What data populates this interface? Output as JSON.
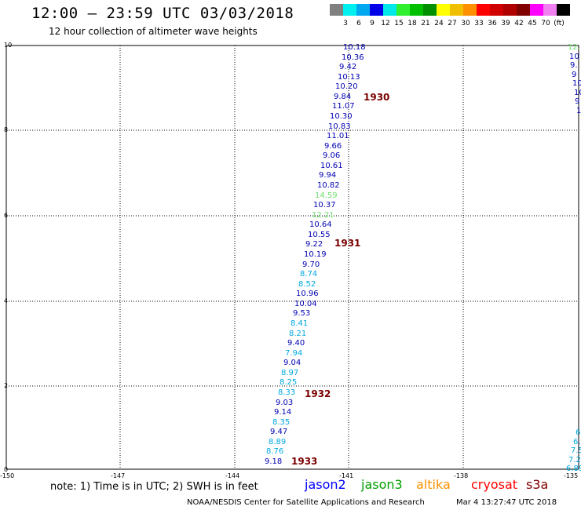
{
  "header": {
    "title": "12:00 — 23:59 UTC 03/03/2018",
    "subtitle": "12 hour collection of altimeter wave heights"
  },
  "legend": {
    "colors": [
      "#808080",
      "#00f0f0",
      "#00a8f0",
      "#0000e8",
      "#00e8e8",
      "#30f030",
      "#00c000",
      "#009000",
      "#ffff00",
      "#f0c000",
      "#ff9000",
      "#ff0000",
      "#d00000",
      "#b00000",
      "#800000",
      "#ff00ff",
      "#f080f0",
      "#000000"
    ],
    "labels": [
      "3",
      "6",
      "9",
      "12",
      "15",
      "18",
      "21",
      "24",
      "27",
      "30",
      "33",
      "36",
      "39",
      "42",
      "45",
      "70",
      "(ft)"
    ]
  },
  "axes": {
    "y_ticks": [
      "10",
      "8",
      "6",
      "4",
      "2",
      "0"
    ],
    "x_ticks": [
      "-150",
      "-147",
      "-144",
      "-141",
      "-138",
      "-135"
    ]
  },
  "palette": {
    "navy": "#0000b4",
    "cyan": "#00a8e0",
    "green": "#70e070",
    "pass": "#7b0000"
  },
  "track_main": [
    {
      "v": "10.18",
      "c": "navy"
    },
    {
      "v": "10.36",
      "c": "navy"
    },
    {
      "v": "9.42",
      "c": "navy"
    },
    {
      "v": "10.13",
      "c": "navy"
    },
    {
      "v": "10.20",
      "c": "navy"
    },
    {
      "v": "9.84",
      "c": "navy"
    },
    {
      "v": "11.07",
      "c": "navy"
    },
    {
      "v": "10.30",
      "c": "navy"
    },
    {
      "v": "10.83",
      "c": "navy"
    },
    {
      "v": "11.01",
      "c": "navy"
    },
    {
      "v": "9.66",
      "c": "navy"
    },
    {
      "v": "9.06",
      "c": "navy"
    },
    {
      "v": "10.61",
      "c": "navy"
    },
    {
      "v": "9.94",
      "c": "navy"
    },
    {
      "v": "10.82",
      "c": "navy"
    },
    {
      "v": "14.59",
      "c": "green"
    },
    {
      "v": "10.37",
      "c": "navy"
    },
    {
      "v": "12.21",
      "c": "green"
    },
    {
      "v": "10.64",
      "c": "navy"
    },
    {
      "v": "10.55",
      "c": "navy"
    },
    {
      "v": "9.22",
      "c": "navy"
    },
    {
      "v": "10.19",
      "c": "navy"
    },
    {
      "v": "9.70",
      "c": "navy"
    },
    {
      "v": "8.74",
      "c": "cyan"
    },
    {
      "v": "8.52",
      "c": "cyan"
    },
    {
      "v": "10.96",
      "c": "navy"
    },
    {
      "v": "10.04",
      "c": "navy"
    },
    {
      "v": "9.53",
      "c": "navy"
    },
    {
      "v": "8.41",
      "c": "cyan"
    },
    {
      "v": "8.21",
      "c": "cyan"
    },
    {
      "v": "9.40",
      "c": "navy"
    },
    {
      "v": "7.94",
      "c": "cyan"
    },
    {
      "v": "9.04",
      "c": "navy"
    },
    {
      "v": "8.97",
      "c": "cyan"
    },
    {
      "v": "8.25",
      "c": "cyan"
    },
    {
      "v": "8.33",
      "c": "cyan"
    },
    {
      "v": "9.03",
      "c": "navy"
    },
    {
      "v": "9.14",
      "c": "navy"
    },
    {
      "v": "8.35",
      "c": "cyan"
    },
    {
      "v": "9.47",
      "c": "navy"
    },
    {
      "v": "8.89",
      "c": "cyan"
    },
    {
      "v": "8.76",
      "c": "cyan"
    },
    {
      "v": "9.18",
      "c": "navy"
    }
  ],
  "edge_top": [
    {
      "v": "12.",
      "c": "green"
    },
    {
      "v": "10",
      "c": "navy"
    },
    {
      "v": "9.",
      "c": "navy"
    },
    {
      "v": "9",
      "c": "navy"
    },
    {
      "v": "10",
      "c": "navy"
    },
    {
      "v": "10",
      "c": "navy"
    },
    {
      "v": "9",
      "c": "navy"
    },
    {
      "v": "10",
      "c": "navy"
    }
  ],
  "edge_bottom": [
    {
      "v": "6",
      "c": "cyan"
    },
    {
      "v": "6.",
      "c": "cyan"
    },
    {
      "v": "7.5",
      "c": "cyan"
    },
    {
      "v": "7.2",
      "c": "cyan"
    },
    {
      "v": "6.89",
      "c": "cyan"
    }
  ],
  "pass_labels": [
    "1930",
    "1931",
    "1932",
    "1933"
  ],
  "note": "note:  1) Time is in UTC;  2) SWH is in feet",
  "satellites": [
    {
      "name": "jason2",
      "color": "#0000ff"
    },
    {
      "name": "jason3",
      "color": "#00a000"
    },
    {
      "name": "altika",
      "color": "#ff9000"
    },
    {
      "name": "cryosat",
      "color": "#ff0000"
    },
    {
      "name": "s3a",
      "color": "#800000"
    }
  ],
  "footer": {
    "center": "NOAA/NESDIS Center for Satellite Applications and Research",
    "timestamp": "Mar  4 13:27:47 UTC 2018"
  }
}
